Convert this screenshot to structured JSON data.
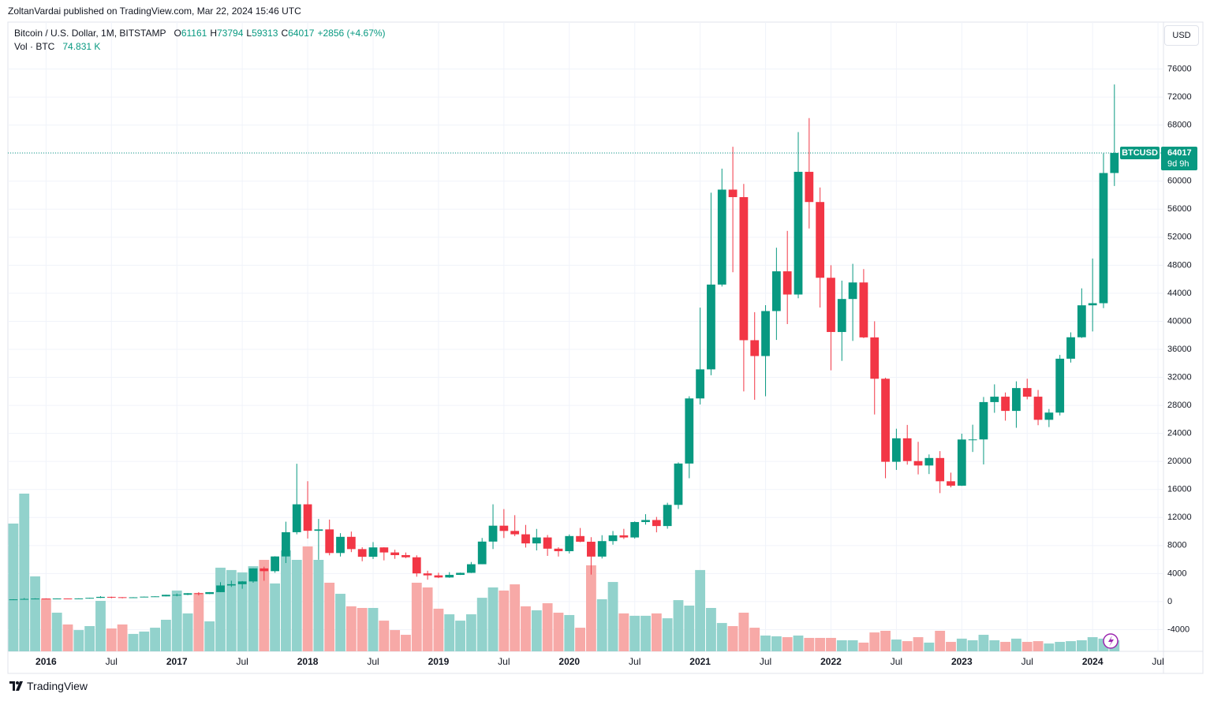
{
  "page": {
    "published": "ZoltanVardai published on TradingView.com, Mar 22, 2024 15:46 UTC",
    "currency_button": "USD",
    "footer": "TradingView"
  },
  "chart_data": {
    "type": "candlestick",
    "title": "Bitcoin / U.S. Dollar, 1M, BITSTAMP",
    "legend": {
      "open_label": "O",
      "open": 61161,
      "high_label": "H",
      "high": 73794,
      "low_label": "L",
      "low": 59313,
      "close_label": "C",
      "close": 64017,
      "change": "+2856 (+4.67%)",
      "volume_title": "Vol · BTC",
      "volume": "74.831 K"
    },
    "price_tag": {
      "symbol": "BTCUSD",
      "countdown": "9d 9h"
    },
    "up_color": "#089981",
    "down_color": "#f23645",
    "up_volume_color": "#92d2cc",
    "down_volume_color": "#f7a9a7",
    "grid": true,
    "x": [
      "2015-10",
      "2015-11",
      "2015-12",
      "2016-01",
      "2016-02",
      "2016-03",
      "2016-04",
      "2016-05",
      "2016-06",
      "2016-07",
      "2016-08",
      "2016-09",
      "2016-10",
      "2016-11",
      "2016-12",
      "2017-01",
      "2017-02",
      "2017-03",
      "2017-04",
      "2017-05",
      "2017-06",
      "2017-07",
      "2017-08",
      "2017-09",
      "2017-10",
      "2017-11",
      "2017-12",
      "2018-01",
      "2018-02",
      "2018-03",
      "2018-04",
      "2018-05",
      "2018-06",
      "2018-07",
      "2018-08",
      "2018-09",
      "2018-10",
      "2018-11",
      "2018-12",
      "2019-01",
      "2019-02",
      "2019-03",
      "2019-04",
      "2019-05",
      "2019-06",
      "2019-07",
      "2019-08",
      "2019-09",
      "2019-10",
      "2019-11",
      "2019-12",
      "2020-01",
      "2020-02",
      "2020-03",
      "2020-04",
      "2020-05",
      "2020-06",
      "2020-07",
      "2020-08",
      "2020-09",
      "2020-10",
      "2020-11",
      "2020-12",
      "2021-01",
      "2021-02",
      "2021-03",
      "2021-04",
      "2021-05",
      "2021-06",
      "2021-07",
      "2021-08",
      "2021-09",
      "2021-10",
      "2021-11",
      "2021-12",
      "2022-01",
      "2022-02",
      "2022-03",
      "2022-04",
      "2022-05",
      "2022-06",
      "2022-07",
      "2022-08",
      "2022-09",
      "2022-10",
      "2022-11",
      "2022-12",
      "2023-01",
      "2023-02",
      "2023-03",
      "2023-04",
      "2023-05",
      "2023-06",
      "2023-07",
      "2023-08",
      "2023-09",
      "2023-10",
      "2023-11",
      "2023-12",
      "2024-01",
      "2024-02",
      "2024-03"
    ],
    "open": [
      236,
      314,
      377,
      430,
      368,
      437,
      416,
      448,
      531,
      673,
      624,
      575,
      609,
      700,
      745,
      966,
      970,
      1190,
      1080,
      1348,
      2300,
      2480,
      2875,
      4735,
      4340,
      6440,
      9900,
      13880,
      10100,
      10300,
      6930,
      9240,
      7490,
      6390,
      7730,
      7010,
      6630,
      6320,
      4020,
      3740,
      3440,
      3810,
      4100,
      5330,
      8560,
      10830,
      10080,
      9600,
      8300,
      9150,
      7550,
      7190,
      9350,
      8540,
      6420,
      8630,
      9450,
      9150,
      11350,
      11640,
      10780,
      13800,
      19700,
      28990,
      33140,
      45240,
      58790,
      57720,
      37300,
      35040,
      41460,
      47130,
      43820,
      61330,
      57020,
      46210,
      38470,
      43180,
      45540,
      37700,
      31800,
      19950,
      23300,
      20050,
      19420,
      20490,
      17170,
      16540,
      23130,
      23140,
      28470,
      29240,
      27210,
      30470,
      29240,
      25940,
      26970,
      34660,
      37720,
      42280,
      42580,
      61161
    ],
    "high": [
      332,
      502,
      466,
      460,
      448,
      443,
      467,
      550,
      780,
      703,
      627,
      629,
      718,
      754,
      975,
      1153,
      1212,
      1350,
      1350,
      2760,
      2980,
      2930,
      4750,
      4980,
      6470,
      11400,
      19666,
      17180,
      11790,
      11700,
      9760,
      9990,
      7750,
      8490,
      7750,
      7400,
      7000,
      6600,
      4400,
      4110,
      4200,
      4130,
      5650,
      9080,
      13880,
      13200,
      12330,
      10940,
      10370,
      9500,
      7750,
      9580,
      10500,
      9190,
      9470,
      10070,
      10380,
      11440,
      12470,
      12080,
      14100,
      19860,
      29300,
      41950,
      58350,
      61780,
      64900,
      59600,
      41300,
      42300,
      50500,
      52900,
      67000,
      69000,
      59100,
      48000,
      45800,
      48200,
      47450,
      40000,
      31950,
      24670,
      25210,
      22800,
      21000,
      21470,
      18400,
      23960,
      25240,
      29200,
      31000,
      29840,
      31430,
      31800,
      30200,
      27480,
      35200,
      38420,
      44700,
      48960,
      63960,
      73794
    ],
    "low": [
      235,
      306,
      349,
      354,
      366,
      392,
      412,
      435,
      505,
      470,
      466,
      564,
      605,
      680,
      741,
      752,
      918,
      885,
      1060,
      1340,
      2090,
      1830,
      2690,
      2970,
      4110,
      5500,
      9600,
      9000,
      5970,
      6600,
      6430,
      7060,
      5750,
      6070,
      5880,
      6100,
      6200,
      3550,
      3120,
      3350,
      3390,
      3800,
      4070,
      5330,
      7500,
      9070,
      9340,
      7710,
      7300,
      6520,
      6430,
      6870,
      8470,
      3850,
      6150,
      8120,
      8930,
      8980,
      10980,
      9880,
      10400,
      13210,
      17600,
      28130,
      32300,
      44960,
      47000,
      30000,
      28800,
      29300,
      37340,
      39600,
      43280,
      53250,
      41960,
      33000,
      34350,
      37200,
      37600,
      26700,
      17600,
      18790,
      19540,
      18150,
      18200,
      15480,
      16300,
      16500,
      21350,
      19570,
      26940,
      25820,
      24800,
      28860,
      25170,
      24900,
      26560,
      34110,
      37620,
      38550,
      41880,
      59313
    ],
    "close": [
      314,
      377,
      430,
      368,
      437,
      416,
      448,
      531,
      673,
      624,
      575,
      609,
      700,
      745,
      966,
      970,
      1190,
      1080,
      1348,
      2300,
      2480,
      2875,
      4735,
      4340,
      6440,
      9900,
      13880,
      10100,
      10300,
      6930,
      9240,
      7490,
      6390,
      7730,
      7010,
      6630,
      6320,
      4020,
      3740,
      3440,
      3810,
      4100,
      5330,
      8560,
      10830,
      10080,
      9600,
      8300,
      9150,
      7550,
      7190,
      9350,
      8540,
      6420,
      8630,
      9450,
      9150,
      11350,
      11640,
      10780,
      13800,
      19700,
      28990,
      33140,
      45240,
      58790,
      57720,
      37300,
      35040,
      41460,
      47130,
      43820,
      61330,
      57020,
      46210,
      38470,
      43180,
      45540,
      37700,
      31800,
      19950,
      23300,
      20050,
      19420,
      20490,
      17170,
      16540,
      23130,
      23140,
      28470,
      29240,
      27210,
      30470,
      29240,
      25940,
      26970,
      34660,
      37720,
      42280,
      42580,
      61160,
      64017
    ],
    "volume": [
      866,
      1069,
      508,
      358,
      262,
      182,
      144,
      171,
      342,
      155,
      182,
      118,
      134,
      160,
      214,
      412,
      257,
      396,
      203,
      567,
      551,
      535,
      577,
      620,
      460,
      684,
      620,
      711,
      620,
      465,
      390,
      305,
      294,
      294,
      208,
      144,
      112,
      465,
      433,
      289,
      251,
      208,
      251,
      363,
      433,
      412,
      454,
      305,
      278,
      326,
      262,
      246,
      160,
      583,
      353,
      470,
      257,
      241,
      241,
      257,
      224,
      347,
      310,
      551,
      294,
      192,
      171,
      262,
      160,
      107,
      102,
      96,
      107,
      91,
      91,
      91,
      75,
      75,
      59,
      128,
      139,
      80,
      69,
      96,
      59,
      139,
      64,
      86,
      75,
      112,
      75,
      64,
      86,
      64,
      69,
      53,
      64,
      69,
      75,
      96,
      86,
      74.831
    ],
    "xlim": [
      "2015-10",
      "2024-07"
    ],
    "xticks": [
      {
        "value": "2016-01",
        "label": "2016"
      },
      {
        "value": "2016-07",
        "label": "Jul"
      },
      {
        "value": "2017-01",
        "label": "2017"
      },
      {
        "value": "2017-07",
        "label": "Jul"
      },
      {
        "value": "2018-01",
        "label": "2018"
      },
      {
        "value": "2018-07",
        "label": "Jul"
      },
      {
        "value": "2019-01",
        "label": "2019"
      },
      {
        "value": "2019-07",
        "label": "Jul"
      },
      {
        "value": "2020-01",
        "label": "2020"
      },
      {
        "value": "2020-07",
        "label": "Jul"
      },
      {
        "value": "2021-01",
        "label": "2021"
      },
      {
        "value": "2021-07",
        "label": "Jul"
      },
      {
        "value": "2022-01",
        "label": "2022"
      },
      {
        "value": "2022-07",
        "label": "Jul"
      },
      {
        "value": "2023-01",
        "label": "2023"
      },
      {
        "value": "2023-07",
        "label": "Jul"
      },
      {
        "value": "2024-01",
        "label": "2024"
      },
      {
        "value": "2024-07",
        "label": "Jul"
      }
    ],
    "ylim": [
      -7100,
      82700
    ],
    "yticks": [
      76000,
      72000,
      68000,
      64000,
      60000,
      56000,
      52000,
      48000,
      44000,
      40000,
      36000,
      32000,
      28000,
      24000,
      20000,
      16000,
      12000,
      8000,
      4000,
      0,
      -4000
    ]
  }
}
